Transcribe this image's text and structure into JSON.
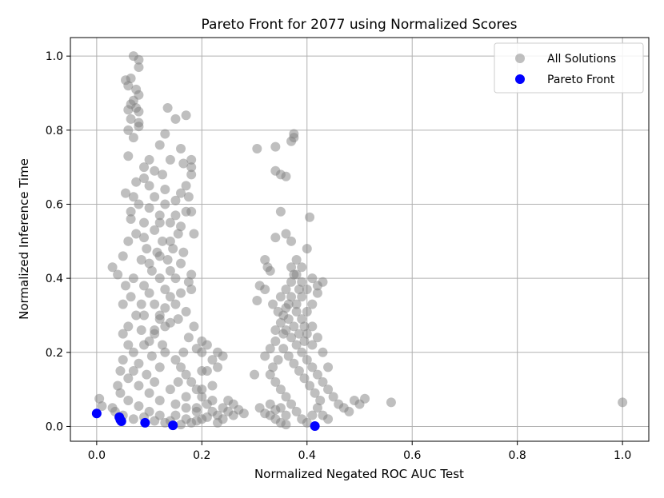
{
  "chart_data": {
    "type": "scatter",
    "title": "Pareto Front for 2077 using Normalized Scores",
    "xlabel": "Normalized Negated ROC AUC Test",
    "ylabel": "Normalized Inference Time",
    "xlim": [
      -0.05,
      1.05
    ],
    "ylim": [
      -0.04,
      1.05
    ],
    "xticks": [
      0.0,
      0.2,
      0.4,
      0.6,
      0.8,
      1.0
    ],
    "yticks": [
      0.0,
      0.2,
      0.4,
      0.6,
      0.8,
      1.0
    ],
    "xtick_labels": [
      "0.0",
      "0.2",
      "0.4",
      "0.6",
      "0.8",
      "1.0"
    ],
    "ytick_labels": [
      "0.0",
      "0.2",
      "0.4",
      "0.6",
      "0.8",
      "1.0"
    ],
    "grid": true,
    "legend_position": "top-right",
    "series": [
      {
        "name": "All Solutions",
        "color": "#808080",
        "points": [
          [
            0.07,
            1.0
          ],
          [
            0.08,
            0.99
          ],
          [
            0.08,
            0.97
          ],
          [
            0.065,
            0.94
          ],
          [
            0.055,
            0.935
          ],
          [
            0.06,
            0.92
          ],
          [
            0.075,
            0.91
          ],
          [
            0.08,
            0.895
          ],
          [
            0.065,
            0.87
          ],
          [
            0.06,
            0.855
          ],
          [
            0.08,
            0.85
          ],
          [
            0.065,
            0.83
          ],
          [
            0.06,
            0.8
          ],
          [
            0.08,
            0.82
          ],
          [
            0.135,
            0.86
          ],
          [
            0.15,
            0.83
          ],
          [
            0.17,
            0.84
          ],
          [
            0.13,
            0.79
          ],
          [
            0.16,
            0.75
          ],
          [
            0.12,
            0.76
          ],
          [
            0.06,
            0.73
          ],
          [
            0.09,
            0.7
          ],
          [
            0.11,
            0.69
          ],
          [
            0.14,
            0.72
          ],
          [
            0.18,
            0.72
          ],
          [
            0.18,
            0.7
          ],
          [
            0.165,
            0.71
          ],
          [
            0.125,
            0.68
          ],
          [
            0.1,
            0.65
          ],
          [
            0.075,
            0.66
          ],
          [
            0.055,
            0.63
          ],
          [
            0.13,
            0.64
          ],
          [
            0.16,
            0.63
          ],
          [
            0.175,
            0.62
          ],
          [
            0.08,
            0.6
          ],
          [
            0.1,
            0.59
          ],
          [
            0.065,
            0.56
          ],
          [
            0.12,
            0.57
          ],
          [
            0.14,
            0.55
          ],
          [
            0.18,
            0.58
          ],
          [
            0.185,
            0.52
          ],
          [
            0.11,
            0.53
          ],
          [
            0.09,
            0.51
          ],
          [
            0.06,
            0.5
          ],
          [
            0.05,
            0.46
          ],
          [
            0.04,
            0.41
          ],
          [
            0.03,
            0.43
          ],
          [
            0.055,
            0.38
          ],
          [
            0.065,
            0.35
          ],
          [
            0.085,
            0.33
          ],
          [
            0.1,
            0.36
          ],
          [
            0.12,
            0.4
          ],
          [
            0.14,
            0.42
          ],
          [
            0.16,
            0.44
          ],
          [
            0.175,
            0.39
          ],
          [
            0.18,
            0.37
          ],
          [
            0.17,
            0.31
          ],
          [
            0.155,
            0.29
          ],
          [
            0.13,
            0.27
          ],
          [
            0.11,
            0.25
          ],
          [
            0.09,
            0.22
          ],
          [
            0.07,
            0.2
          ],
          [
            0.05,
            0.18
          ],
          [
            0.045,
            0.15
          ],
          [
            0.06,
            0.13
          ],
          [
            0.08,
            0.11
          ],
          [
            0.1,
            0.09
          ],
          [
            0.12,
            0.07
          ],
          [
            0.15,
            0.06
          ],
          [
            0.17,
            0.05
          ],
          [
            0.19,
            0.04
          ],
          [
            0.2,
            0.02
          ],
          [
            0.18,
            0.01
          ],
          [
            0.16,
            0.005
          ],
          [
            0.14,
            0.015
          ],
          [
            0.12,
            0.03
          ],
          [
            0.1,
            0.04
          ],
          [
            0.08,
            0.055
          ],
          [
            0.06,
            0.07
          ],
          [
            0.045,
            0.09
          ],
          [
            0.04,
            0.11
          ],
          [
            0.05,
            0.25
          ],
          [
            0.06,
            0.27
          ],
          [
            0.075,
            0.3
          ],
          [
            0.09,
            0.38
          ],
          [
            0.105,
            0.42
          ],
          [
            0.115,
            0.47
          ],
          [
            0.125,
            0.5
          ],
          [
            0.135,
            0.45
          ],
          [
            0.145,
            0.48
          ],
          [
            0.155,
            0.52
          ],
          [
            0.165,
            0.47
          ],
          [
            0.15,
            0.4
          ],
          [
            0.14,
            0.35
          ],
          [
            0.13,
            0.32
          ],
          [
            0.12,
            0.29
          ],
          [
            0.11,
            0.26
          ],
          [
            0.1,
            0.23
          ],
          [
            0.13,
            0.2
          ],
          [
            0.15,
            0.18
          ],
          [
            0.16,
            0.16
          ],
          [
            0.17,
            0.14
          ],
          [
            0.18,
            0.12
          ],
          [
            0.19,
            0.1
          ],
          [
            0.2,
            0.08
          ],
          [
            0.21,
            0.06
          ],
          [
            0.22,
            0.04
          ],
          [
            0.23,
            0.03
          ],
          [
            0.24,
            0.05
          ],
          [
            0.25,
            0.04
          ],
          [
            0.26,
            0.03
          ],
          [
            0.27,
            0.045
          ],
          [
            0.28,
            0.035
          ],
          [
            0.21,
            0.15
          ],
          [
            0.23,
            0.16
          ],
          [
            0.19,
            0.21
          ],
          [
            0.2,
            0.23
          ],
          [
            0.22,
            0.11
          ],
          [
            0.24,
            0.19
          ],
          [
            0.25,
            0.07
          ],
          [
            0.22,
            0.18
          ],
          [
            0.2,
            0.2
          ],
          [
            0.19,
            0.05
          ],
          [
            0.17,
            0.08
          ],
          [
            0.085,
            0.45
          ],
          [
            0.095,
            0.48
          ],
          [
            0.075,
            0.52
          ],
          [
            0.065,
            0.58
          ],
          [
            0.07,
            0.62
          ],
          [
            0.09,
            0.3
          ],
          [
            0.11,
            0.33
          ],
          [
            0.13,
            0.37
          ],
          [
            0.05,
            0.33
          ],
          [
            0.06,
            0.22
          ],
          [
            0.07,
            0.15
          ],
          [
            0.08,
            0.17
          ],
          [
            0.095,
            0.14
          ],
          [
            0.11,
            0.12
          ],
          [
            0.12,
            0.16
          ],
          [
            0.14,
            0.1
          ],
          [
            0.155,
            0.12
          ],
          [
            0.165,
            0.2
          ],
          [
            0.175,
            0.24
          ],
          [
            0.185,
            0.27
          ],
          [
            0.14,
            0.28
          ],
          [
            0.125,
            0.22
          ],
          [
            0.105,
            0.19
          ],
          [
            0.085,
            0.26
          ],
          [
            0.07,
            0.4
          ],
          [
            0.1,
            0.44
          ],
          [
            0.12,
            0.46
          ],
          [
            0.14,
            0.5
          ],
          [
            0.16,
            0.54
          ],
          [
            0.17,
            0.58
          ],
          [
            0.15,
            0.61
          ],
          [
            0.13,
            0.6
          ],
          [
            0.11,
            0.62
          ],
          [
            0.09,
            0.55
          ],
          [
            0.3,
            0.14
          ],
          [
            0.31,
            0.05
          ],
          [
            0.32,
            0.035
          ],
          [
            0.33,
            0.03
          ],
          [
            0.34,
            0.02
          ],
          [
            0.35,
            0.01
          ],
          [
            0.36,
            0.005
          ],
          [
            0.305,
            0.75
          ],
          [
            0.34,
            0.755
          ],
          [
            0.34,
            0.69
          ],
          [
            0.35,
            0.68
          ],
          [
            0.36,
            0.675
          ],
          [
            0.375,
            0.78
          ],
          [
            0.375,
            0.79
          ],
          [
            0.37,
            0.77
          ],
          [
            0.35,
            0.58
          ],
          [
            0.34,
            0.51
          ],
          [
            0.36,
            0.52
          ],
          [
            0.37,
            0.5
          ],
          [
            0.32,
            0.45
          ],
          [
            0.325,
            0.43
          ],
          [
            0.33,
            0.42
          ],
          [
            0.31,
            0.38
          ],
          [
            0.32,
            0.37
          ],
          [
            0.305,
            0.34
          ],
          [
            0.335,
            0.33
          ],
          [
            0.345,
            0.31
          ],
          [
            0.355,
            0.3
          ],
          [
            0.365,
            0.29
          ],
          [
            0.375,
            0.27
          ],
          [
            0.385,
            0.25
          ],
          [
            0.395,
            0.23
          ],
          [
            0.36,
            0.26
          ],
          [
            0.37,
            0.24
          ],
          [
            0.38,
            0.22
          ],
          [
            0.39,
            0.2
          ],
          [
            0.4,
            0.18
          ],
          [
            0.41,
            0.16
          ],
          [
            0.42,
            0.14
          ],
          [
            0.43,
            0.12
          ],
          [
            0.44,
            0.1
          ],
          [
            0.45,
            0.08
          ],
          [
            0.46,
            0.06
          ],
          [
            0.47,
            0.05
          ],
          [
            0.48,
            0.04
          ],
          [
            0.49,
            0.07
          ],
          [
            0.5,
            0.06
          ],
          [
            0.51,
            0.075
          ],
          [
            0.42,
            0.05
          ],
          [
            0.43,
            0.03
          ],
          [
            0.44,
            0.02
          ],
          [
            0.41,
            0.03
          ],
          [
            0.4,
            0.01
          ],
          [
            0.39,
            0.02
          ],
          [
            0.38,
            0.04
          ],
          [
            0.37,
            0.06
          ],
          [
            0.36,
            0.08
          ],
          [
            0.35,
            0.1
          ],
          [
            0.34,
            0.12
          ],
          [
            0.33,
            0.14
          ],
          [
            0.32,
            0.19
          ],
          [
            0.33,
            0.21
          ],
          [
            0.34,
            0.23
          ],
          [
            0.35,
            0.35
          ],
          [
            0.36,
            0.37
          ],
          [
            0.37,
            0.39
          ],
          [
            0.38,
            0.41
          ],
          [
            0.39,
            0.43
          ],
          [
            0.4,
            0.48
          ],
          [
            0.405,
            0.565
          ],
          [
            0.41,
            0.4
          ],
          [
            0.42,
            0.38
          ],
          [
            0.43,
            0.39
          ],
          [
            0.42,
            0.36
          ],
          [
            0.41,
            0.33
          ],
          [
            0.4,
            0.31
          ],
          [
            0.39,
            0.29
          ],
          [
            0.38,
            0.33
          ],
          [
            0.37,
            0.35
          ],
          [
            0.36,
            0.32
          ],
          [
            0.35,
            0.28
          ],
          [
            0.34,
            0.26
          ],
          [
            0.38,
            0.31
          ],
          [
            0.39,
            0.35
          ],
          [
            0.4,
            0.37
          ],
          [
            0.41,
            0.27
          ],
          [
            0.42,
            0.24
          ],
          [
            0.43,
            0.2
          ],
          [
            0.44,
            0.16
          ],
          [
            0.385,
            0.15
          ],
          [
            0.375,
            0.17
          ],
          [
            0.365,
            0.19
          ],
          [
            0.355,
            0.21
          ],
          [
            0.395,
            0.13
          ],
          [
            0.405,
            0.11
          ],
          [
            0.415,
            0.09
          ],
          [
            0.425,
            0.07
          ],
          [
            0.4,
            0.25
          ],
          [
            0.41,
            0.22
          ],
          [
            0.395,
            0.27
          ],
          [
            0.385,
            0.37
          ],
          [
            0.37,
            0.43
          ],
          [
            0.38,
            0.45
          ],
          [
            0.39,
            0.39
          ],
          [
            0.375,
            0.41
          ],
          [
            0.365,
            0.33
          ],
          [
            0.355,
            0.25
          ],
          [
            0.345,
            0.18
          ],
          [
            0.335,
            0.16
          ],
          [
            0.35,
            0.05
          ],
          [
            0.36,
            0.03
          ],
          [
            0.33,
            0.06
          ],
          [
            0.34,
            0.045
          ],
          [
            0.56,
            0.065
          ],
          [
            1.0,
            0.065
          ],
          [
            0.005,
            0.075
          ],
          [
            0.01,
            0.055
          ],
          [
            0.03,
            0.05
          ],
          [
            0.035,
            0.04
          ],
          [
            0.05,
            0.03
          ],
          [
            0.07,
            0.02
          ],
          [
            0.09,
            0.025
          ],
          [
            0.11,
            0.015
          ],
          [
            0.13,
            0.01
          ],
          [
            0.15,
            0.03
          ],
          [
            0.17,
            0.02
          ],
          [
            0.19,
            0.015
          ],
          [
            0.21,
            0.025
          ],
          [
            0.23,
            0.01
          ],
          [
            0.24,
            0.02
          ],
          [
            0.22,
            0.07
          ],
          [
            0.2,
            0.1
          ],
          [
            0.2,
            0.15
          ],
          [
            0.21,
            0.22
          ],
          [
            0.23,
            0.2
          ],
          [
            0.26,
            0.06
          ],
          [
            0.12,
            0.3
          ],
          [
            0.15,
            0.33
          ],
          [
            0.16,
            0.36
          ],
          [
            0.18,
            0.41
          ],
          [
            0.12,
            0.55
          ],
          [
            0.15,
            0.57
          ],
          [
            0.17,
            0.65
          ],
          [
            0.18,
            0.68
          ],
          [
            0.09,
            0.67
          ],
          [
            0.1,
            0.72
          ],
          [
            0.07,
            0.78
          ],
          [
            0.08,
            0.81
          ],
          [
            0.075,
            0.86
          ],
          [
            0.07,
            0.88
          ]
        ]
      },
      {
        "name": "Pareto Front",
        "color": "#0000ff",
        "points": [
          [
            0.0,
            0.035
          ],
          [
            0.043,
            0.025
          ],
          [
            0.045,
            0.018
          ],
          [
            0.047,
            0.014
          ],
          [
            0.092,
            0.01
          ],
          [
            0.145,
            0.003
          ],
          [
            0.415,
            0.001
          ]
        ]
      }
    ]
  }
}
